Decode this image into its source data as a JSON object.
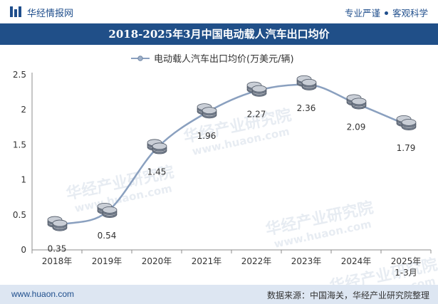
{
  "header": {
    "brand": "华经情报网",
    "tag1": "专业严谨",
    "tag2": "客观科学"
  },
  "title": "2018-2025年3月中国电动载人汽车出口均价",
  "watermark": {
    "cn": "华经产业研究院",
    "url": "www.huaon.com"
  },
  "footer": {
    "url": "www.huaon.com",
    "source": "数据来源：中国海关，华经产业研究院整理"
  },
  "colors": {
    "brand": "#1f4e8c",
    "title_bar": "#204f88",
    "footer_bg": "#dde6f2",
    "line": "#8aa0bf"
  },
  "chart_data": {
    "type": "line",
    "categories": [
      "2018年",
      "2019年",
      "2020年",
      "2021年",
      "2022年",
      "2023年",
      "2024年",
      "2025年\n1-3月"
    ],
    "series": [
      {
        "name": "电动载人汽车出口均价(万美元/辆)",
        "values": [
          0.35,
          0.54,
          1.45,
          1.96,
          2.27,
          2.36,
          2.09,
          1.79
        ]
      }
    ],
    "data_labels": [
      "0.35",
      "0.54",
      "1.45",
      "1.96",
      "2.27",
      "2.36",
      "2.09",
      "1.79"
    ],
    "ylim": [
      0,
      2.5
    ],
    "yticks": [
      "0",
      "0.5",
      "1",
      "1.5",
      "2",
      "2.5"
    ],
    "ytick_values": [
      0,
      0.5,
      1,
      1.5,
      2,
      2.5
    ],
    "marker": "coin-stack-icon",
    "legend_position": "top-center",
    "grid": false,
    "smooth": true
  }
}
